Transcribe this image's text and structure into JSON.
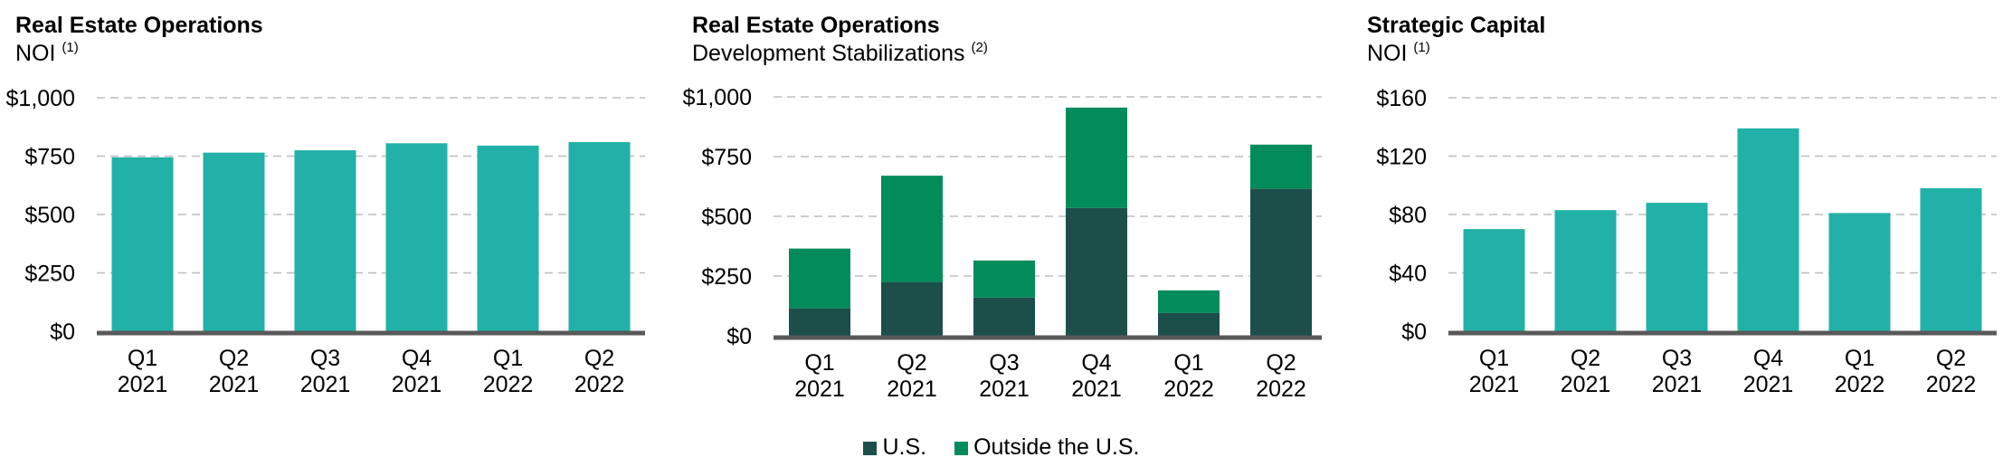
{
  "colors": {
    "bar": "#21B1A8",
    "us": "#1C4E4A",
    "outside_us": "#038C5B",
    "grid": "#BDBDBD",
    "axis": "#595959"
  },
  "chart_data": [
    {
      "type": "bar",
      "title": "Real Estate Operations",
      "subtitle": "NOI",
      "subtitle_note": "(1)",
      "categories": [
        "Q1\n2021",
        "Q2\n2021",
        "Q3\n2021",
        "Q4\n2021",
        "Q1\n2022",
        "Q2\n2022"
      ],
      "values": [
        745,
        765,
        775,
        805,
        795,
        810
      ],
      "ylim": [
        0,
        1000
      ],
      "yticks": [
        0,
        250,
        500,
        750,
        1000
      ],
      "ytick_labels": [
        "$0",
        "$250",
        "$500",
        "$750",
        "$1,000"
      ],
      "grid": true
    },
    {
      "type": "bar",
      "stacked": true,
      "title": "Real Estate Operations",
      "subtitle": "Development Stabilizations",
      "subtitle_note": "(2)",
      "categories": [
        "Q1\n2021",
        "Q2\n2021",
        "Q3\n2021",
        "Q4\n2021",
        "Q1\n2022",
        "Q2\n2022"
      ],
      "series": [
        {
          "name": "U.S.",
          "values": [
            115,
            225,
            160,
            535,
            95,
            615
          ]
        },
        {
          "name": "Outside the U.S.",
          "values": [
            250,
            445,
            155,
            420,
            95,
            185
          ]
        }
      ],
      "ylim": [
        0,
        1000
      ],
      "yticks": [
        0,
        250,
        500,
        750,
        1000
      ],
      "ytick_labels": [
        "$0",
        "$250",
        "$500",
        "$750",
        "$1,000"
      ],
      "grid": true,
      "legend_position": "bottom-center"
    },
    {
      "type": "bar",
      "title": "Strategic Capital",
      "subtitle": "NOI",
      "subtitle_note": "(1)",
      "categories": [
        "Q1\n2021",
        "Q2\n2021",
        "Q3\n2021",
        "Q4\n2021",
        "Q1\n2022",
        "Q2\n2022"
      ],
      "values": [
        70,
        83,
        88,
        139,
        81,
        98
      ],
      "ylim": [
        0,
        160
      ],
      "yticks": [
        0,
        40,
        80,
        120,
        160
      ],
      "ytick_labels": [
        "$0",
        "$40",
        "$80",
        "$120",
        "$160"
      ],
      "grid": true
    }
  ],
  "legend": [
    {
      "label": "U.S.",
      "color": "#1C4E4A"
    },
    {
      "label": "Outside the U.S.",
      "color": "#038C5B"
    }
  ]
}
